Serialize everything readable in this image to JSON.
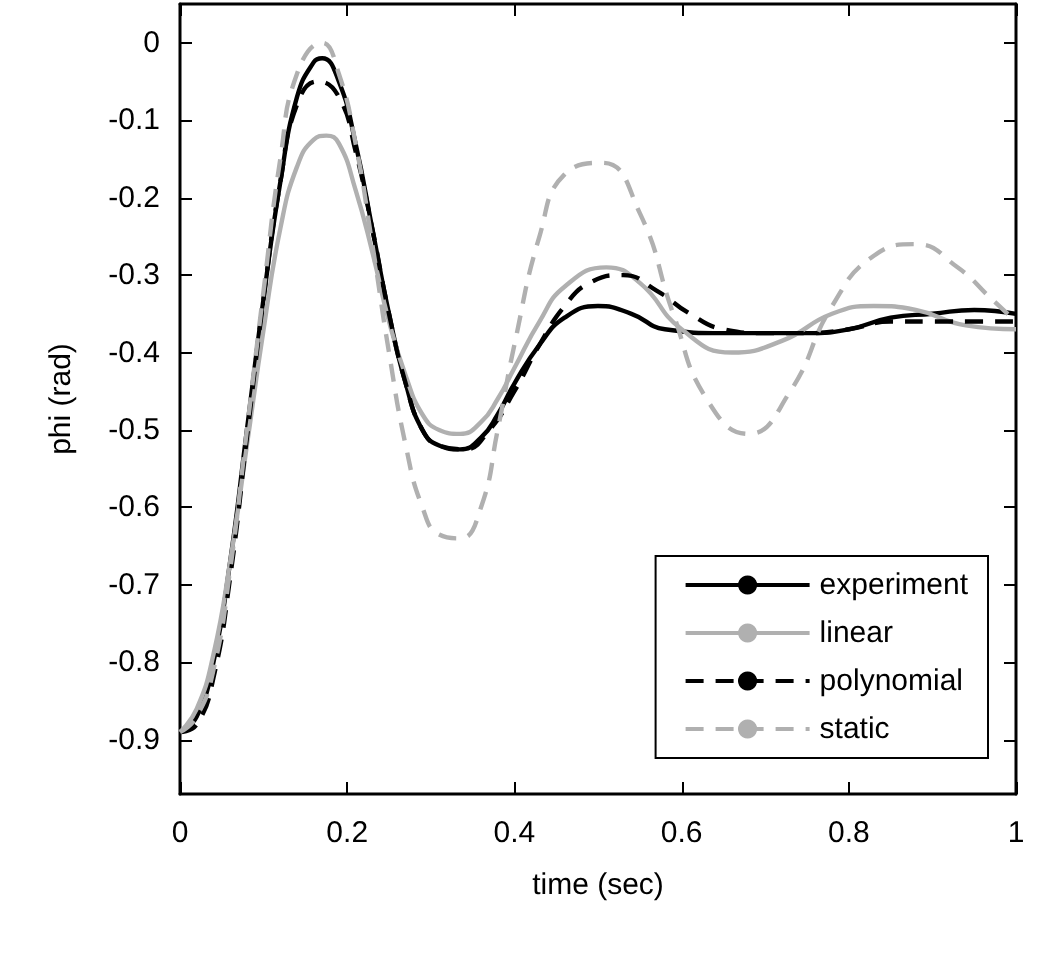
{
  "chart_data": {
    "type": "line",
    "xlabel": "time (sec)",
    "ylabel": "phi (rad)",
    "xlim": [
      0,
      1
    ],
    "xticks": [
      0,
      0.2,
      0.4,
      0.6,
      0.8,
      1
    ],
    "ylim": [
      -0.97,
      0.05
    ],
    "yticks": [
      0,
      -0.1,
      -0.2,
      -0.3,
      -0.4,
      -0.5,
      -0.6,
      -0.7,
      -0.8,
      -0.9
    ],
    "grid": false,
    "legend": "bottom right",
    "marker": "none",
    "series": [
      {
        "name": "experiment",
        "color": "#000000",
        "line_style": "solid",
        "x": [
          0,
          0.02,
          0.04,
          0.06,
          0.08,
          0.1,
          0.12,
          0.14,
          0.16,
          0.17,
          0.19,
          0.21,
          0.23,
          0.25,
          0.27,
          0.29,
          0.31,
          0.335,
          0.36,
          0.38,
          0.4,
          0.43,
          0.46,
          0.5,
          0.54,
          0.58,
          0.65,
          0.7,
          0.75,
          0.8,
          0.85,
          0.9,
          0.95,
          1
        ],
        "values": [
          -0.89,
          -0.87,
          -0.8,
          -0.67,
          -0.5,
          -0.33,
          -0.18,
          -0.07,
          -0.025,
          -0.02,
          -0.05,
          -0.13,
          -0.24,
          -0.35,
          -0.44,
          -0.5,
          -0.52,
          -0.525,
          -0.51,
          -0.48,
          -0.44,
          -0.39,
          -0.355,
          -0.34,
          -0.35,
          -0.37,
          -0.375,
          -0.375,
          -0.375,
          -0.37,
          -0.355,
          -0.35,
          -0.345,
          -0.35
        ]
      },
      {
        "name": "linear",
        "color": "#b0b0b0",
        "line_style": "solid",
        "x": [
          0,
          0.02,
          0.04,
          0.06,
          0.08,
          0.1,
          0.12,
          0.14,
          0.16,
          0.175,
          0.19,
          0.21,
          0.23,
          0.25,
          0.27,
          0.29,
          0.31,
          0.335,
          0.36,
          0.38,
          0.4,
          0.43,
          0.46,
          0.51,
          0.55,
          0.6,
          0.66,
          0.72,
          0.78,
          0.83,
          0.88,
          0.94,
          1
        ],
        "values": [
          -0.89,
          -0.86,
          -0.79,
          -0.67,
          -0.52,
          -0.37,
          -0.24,
          -0.16,
          -0.125,
          -0.12,
          -0.13,
          -0.19,
          -0.27,
          -0.36,
          -0.43,
          -0.48,
          -0.5,
          -0.505,
          -0.49,
          -0.46,
          -0.42,
          -0.36,
          -0.315,
          -0.29,
          -0.31,
          -0.37,
          -0.4,
          -0.385,
          -0.35,
          -0.34,
          -0.345,
          -0.365,
          -0.37
        ]
      },
      {
        "name": "polynomial",
        "color": "#000000",
        "line_style": "dashed",
        "x": [
          0,
          0.02,
          0.04,
          0.06,
          0.08,
          0.1,
          0.12,
          0.14,
          0.165,
          0.19,
          0.21,
          0.23,
          0.25,
          0.27,
          0.29,
          0.31,
          0.34,
          0.37,
          0.4,
          0.43,
          0.46,
          0.49,
          0.53,
          0.57,
          0.61,
          0.65,
          0.7,
          0.75,
          0.8,
          0.85,
          0.9,
          1
        ],
        "values": [
          -0.89,
          -0.88,
          -0.82,
          -0.69,
          -0.51,
          -0.33,
          -0.18,
          -0.08,
          -0.05,
          -0.07,
          -0.14,
          -0.24,
          -0.35,
          -0.44,
          -0.5,
          -0.52,
          -0.525,
          -0.5,
          -0.45,
          -0.39,
          -0.34,
          -0.31,
          -0.3,
          -0.32,
          -0.35,
          -0.37,
          -0.375,
          -0.375,
          -0.37,
          -0.36,
          -0.36,
          -0.36
        ]
      },
      {
        "name": "static",
        "color": "#b0b0b0",
        "line_style": "dashed",
        "x": [
          0,
          0.02,
          0.04,
          0.06,
          0.08,
          0.1,
          0.12,
          0.14,
          0.17,
          0.19,
          0.21,
          0.23,
          0.25,
          0.27,
          0.29,
          0.31,
          0.335,
          0.36,
          0.38,
          0.4,
          0.43,
          0.46,
          0.505,
          0.55,
          0.59,
          0.63,
          0.68,
          0.73,
          0.78,
          0.83,
          0.88,
          0.93,
          0.97,
          1
        ],
        "values": [
          -0.89,
          -0.87,
          -0.81,
          -0.68,
          -0.5,
          -0.32,
          -0.15,
          -0.04,
          0.0,
          -0.04,
          -0.13,
          -0.26,
          -0.4,
          -0.52,
          -0.6,
          -0.635,
          -0.64,
          -0.6,
          -0.5,
          -0.39,
          -0.25,
          -0.17,
          -0.155,
          -0.22,
          -0.35,
          -0.46,
          -0.505,
          -0.45,
          -0.34,
          -0.275,
          -0.26,
          -0.29,
          -0.33,
          -0.36
        ]
      }
    ]
  }
}
